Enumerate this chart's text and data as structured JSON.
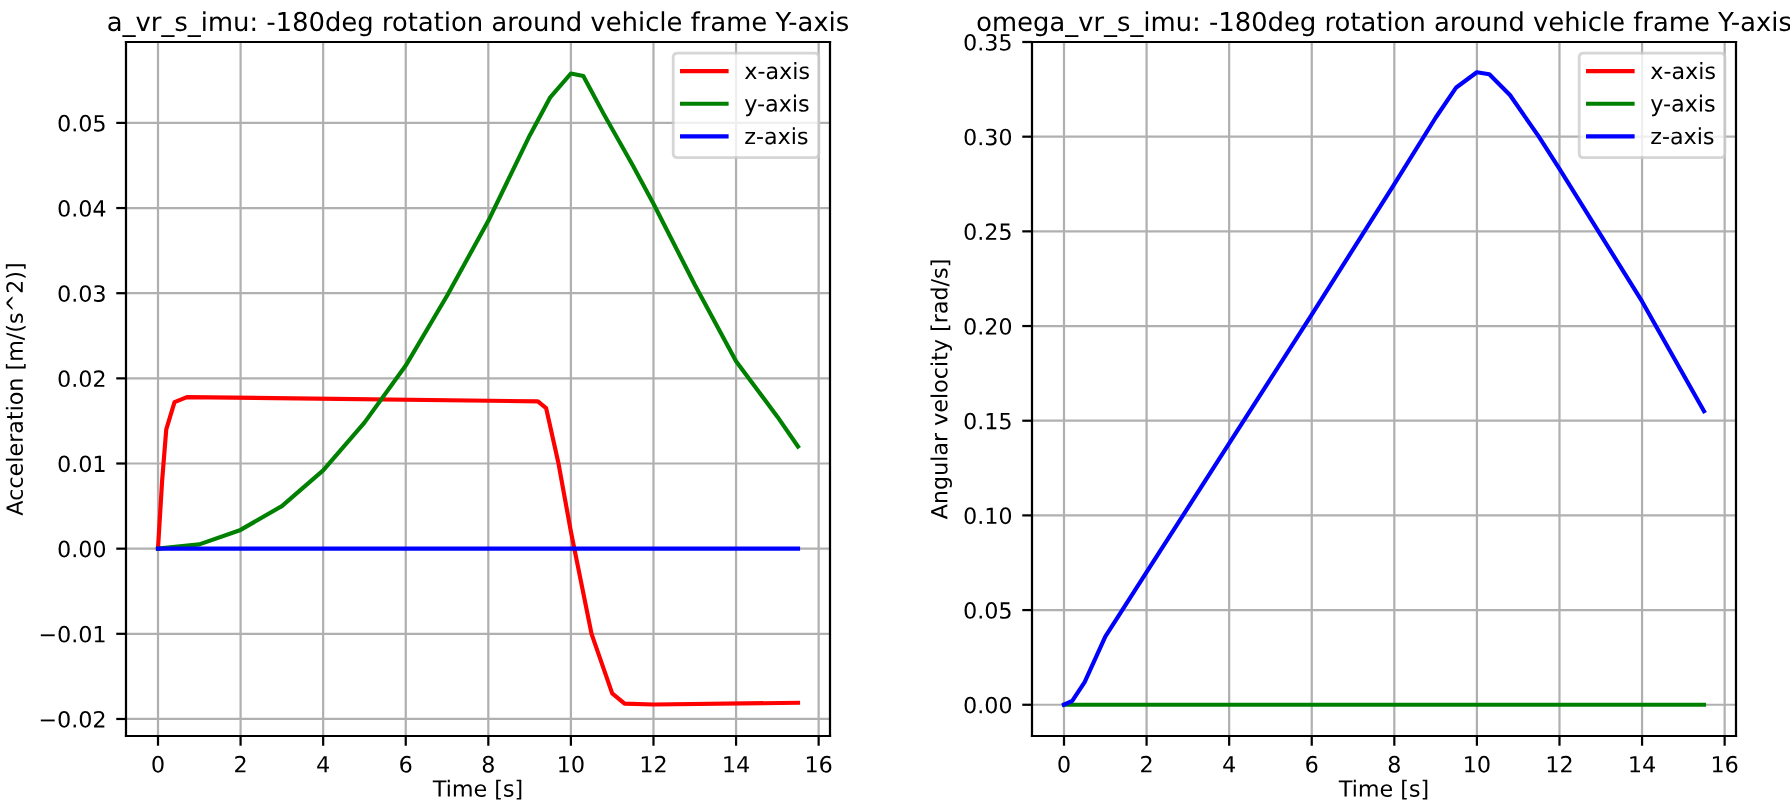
{
  "chart_data": [
    {
      "type": "line",
      "title": "a_vr_s_imu: -180deg rotation around vehicle frame Y-axis",
      "xlabel": "Time [s]",
      "ylabel": "Acceleration [m/(s^2)]",
      "xlim": [
        -0.775,
        16.275
      ],
      "ylim": [
        -0.022,
        0.0595
      ],
      "xticks": [
        0,
        2,
        4,
        6,
        8,
        10,
        12,
        14,
        16
      ],
      "yticks": [
        {
          "value": -0.02,
          "label": "−0.02"
        },
        {
          "value": -0.01,
          "label": "−0.01"
        },
        {
          "value": 0,
          "label": "0.00"
        },
        {
          "value": 0.01,
          "label": "0.01"
        },
        {
          "value": 0.02,
          "label": "0.02"
        },
        {
          "value": 0.03,
          "label": "0.03"
        },
        {
          "value": 0.04,
          "label": "0.04"
        },
        {
          "value": 0.05,
          "label": "0.05"
        }
      ],
      "grid": true,
      "legend": "top right",
      "series": [
        {
          "name": "x-axis",
          "color": "#ff0000",
          "x": [
            0,
            0.1,
            0.2,
            0.4,
            0.7,
            9.2,
            9.4,
            9.7,
            10,
            10.5,
            11,
            11.3,
            12,
            15.5
          ],
          "values": [
            0,
            0.008,
            0.014,
            0.0172,
            0.0178,
            0.0173,
            0.0165,
            0.01,
            0.002,
            -0.01,
            -0.017,
            -0.0182,
            -0.0183,
            -0.0181
          ]
        },
        {
          "name": "y-axis",
          "color": "#008000",
          "x": [
            0,
            1,
            2,
            3,
            4,
            5,
            6,
            7,
            8,
            9,
            9.5,
            10,
            10.3,
            10.8,
            11.5,
            12,
            13,
            14,
            15,
            15.5
          ],
          "values": [
            0,
            0.0005,
            0.0022,
            0.005,
            0.0092,
            0.0148,
            0.0215,
            0.0297,
            0.0385,
            0.0485,
            0.053,
            0.0558,
            0.0555,
            0.051,
            0.045,
            0.0405,
            0.031,
            0.022,
            0.0155,
            0.012
          ]
        },
        {
          "name": "z-axis",
          "color": "#0000ff",
          "x": [
            0,
            15.5
          ],
          "values": [
            0,
            0
          ]
        }
      ]
    },
    {
      "type": "line",
      "title": "omega_vr_s_imu: -180deg rotation around vehicle frame Y-axis",
      "xlabel": "Time [s]",
      "ylabel": "Angular velocity [rad/s]",
      "xlim": [
        -0.775,
        16.275
      ],
      "ylim": [
        -0.0165,
        0.35
      ],
      "xticks": [
        0,
        2,
        4,
        6,
        8,
        10,
        12,
        14,
        16
      ],
      "yticks": [
        {
          "value": 0,
          "label": "0.00"
        },
        {
          "value": 0.05,
          "label": "0.05"
        },
        {
          "value": 0.1,
          "label": "0.10"
        },
        {
          "value": 0.15,
          "label": "0.15"
        },
        {
          "value": 0.2,
          "label": "0.20"
        },
        {
          "value": 0.25,
          "label": "0.25"
        },
        {
          "value": 0.3,
          "label": "0.30"
        },
        {
          "value": 0.35,
          "label": "0.35"
        }
      ],
      "grid": true,
      "legend": "top right",
      "series": [
        {
          "name": "x-axis",
          "color": "#ff0000"
        },
        {
          "name": "y-axis",
          "color": "#008000",
          "x": [
            0,
            15.5
          ],
          "values": [
            0,
            0
          ]
        },
        {
          "name": "z-axis",
          "color": "#0000ff",
          "x": [
            0,
            0.2,
            0.5,
            1,
            2,
            4,
            6,
            8,
            9,
            9.5,
            10,
            10.3,
            10.8,
            11.5,
            12,
            14,
            15.5
          ],
          "values": [
            0,
            0.002,
            0.012,
            0.036,
            0.07,
            0.138,
            0.206,
            0.275,
            0.31,
            0.326,
            0.334,
            0.333,
            0.322,
            0.3,
            0.283,
            0.213,
            0.155
          ]
        }
      ]
    }
  ]
}
